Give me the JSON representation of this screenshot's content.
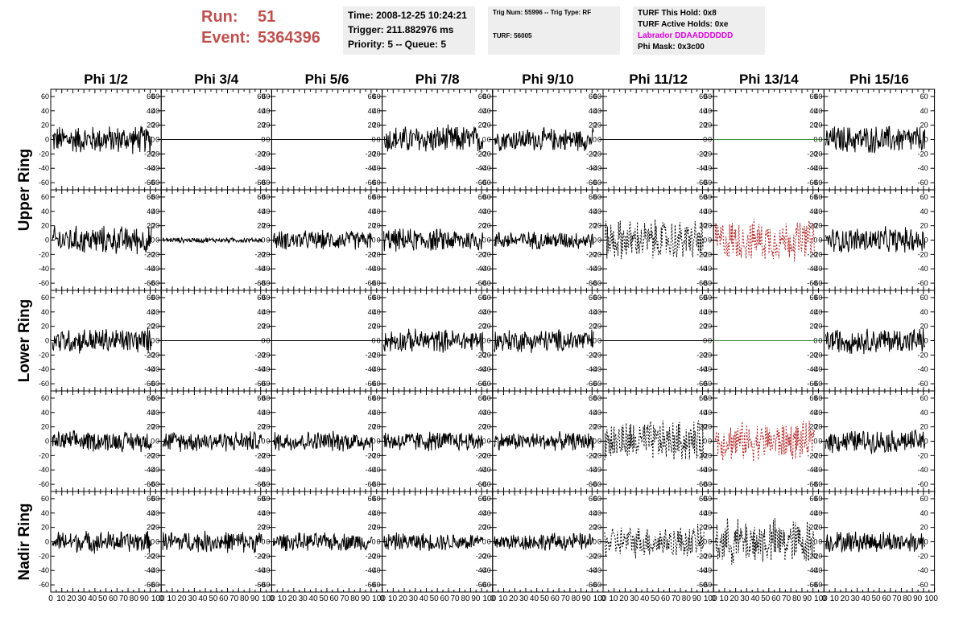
{
  "header": {
    "run_label": "Run:",
    "run_value": "51",
    "event_label": "Event:",
    "event_value": "5364396",
    "time": "Time: 2008-12-25 10:24:21",
    "trigger": "Trigger: 211.882976 ms",
    "priority": "Priority: 5 -- Queue: 5",
    "trig_num": "Trig Num: 55996 -- Trig Type: RF",
    "turf": "TURF: 56005",
    "turf_hold": "TURF This Hold: 0x8",
    "turf_active": "TURF Active Holds: 0xe",
    "labrador": "Labrador DDAADDDDDD",
    "phi_mask": "Phi Mask: 0x3c00"
  },
  "colors": {
    "run_text": "#c0504d",
    "labrador_text": "#e000e0",
    "flat_green": "#2e8b2e",
    "dotted_red": "#b22222",
    "trace": "#000000"
  },
  "chart_data": {
    "type": "line",
    "columns": [
      "Phi 1/2",
      "Phi 3/4",
      "Phi 5/6",
      "Phi 7/8",
      "Phi 9/10",
      "Phi 11/12",
      "Phi 13/14",
      "Phi 15/16"
    ],
    "row_groups": [
      "Upper Ring",
      "Lower Ring",
      "Nadir Ring"
    ],
    "ylim": [
      -70,
      70
    ],
    "xlim": [
      0,
      100
    ],
    "y_ticks": [
      "-60",
      "-40",
      "-20",
      "0",
      "20",
      "40",
      "60"
    ],
    "x_ticks": [
      "0",
      "10",
      "20",
      "30",
      "40",
      "50",
      "60",
      "70",
      "80",
      "90",
      "100"
    ],
    "rows": [
      [
        "n:22",
        "flat",
        "flat",
        "n:22",
        "n:18",
        "flat",
        "flatg",
        "n:22"
      ],
      [
        "n:22",
        "n:4",
        "n:15",
        "n:18",
        "n:14",
        "d:32",
        "r:32",
        "n:20"
      ],
      [
        "n:20",
        "flat",
        "flat",
        "n:18",
        "n:18",
        "flat",
        "flatg",
        "n:20"
      ],
      [
        "n:16",
        "n:16",
        "n:16",
        "n:16",
        "n:14",
        "d:32",
        "r:30",
        "n:18"
      ],
      [
        "n:17",
        "n:17",
        "n:14",
        "n:14",
        "n:14",
        "d:25",
        "d:36",
        "n:17"
      ]
    ]
  }
}
